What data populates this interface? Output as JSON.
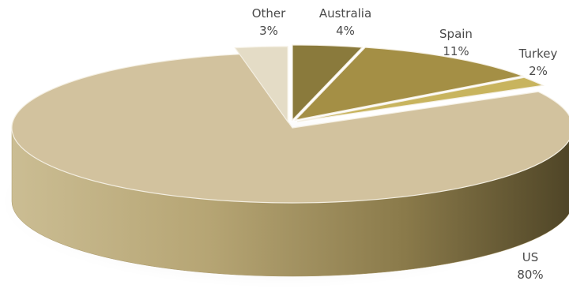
{
  "chart_data": {
    "type": "pie",
    "style": "3d",
    "title": "",
    "series": [
      {
        "values": [
          {
            "label": "US",
            "value": 80,
            "display": "80%",
            "color": "#d2c29e"
          },
          {
            "label": "Other",
            "value": 3,
            "display": "3%",
            "color": "#e4dcc6"
          },
          {
            "label": "Australia",
            "value": 4,
            "display": "4%",
            "color": "#8a7a3c"
          },
          {
            "label": "Spain",
            "value": 11,
            "display": "11%",
            "color": "#a48f45"
          },
          {
            "label": "Turkey",
            "value": 2,
            "display": "2%",
            "color": "#c8b45e"
          }
        ]
      }
    ]
  }
}
